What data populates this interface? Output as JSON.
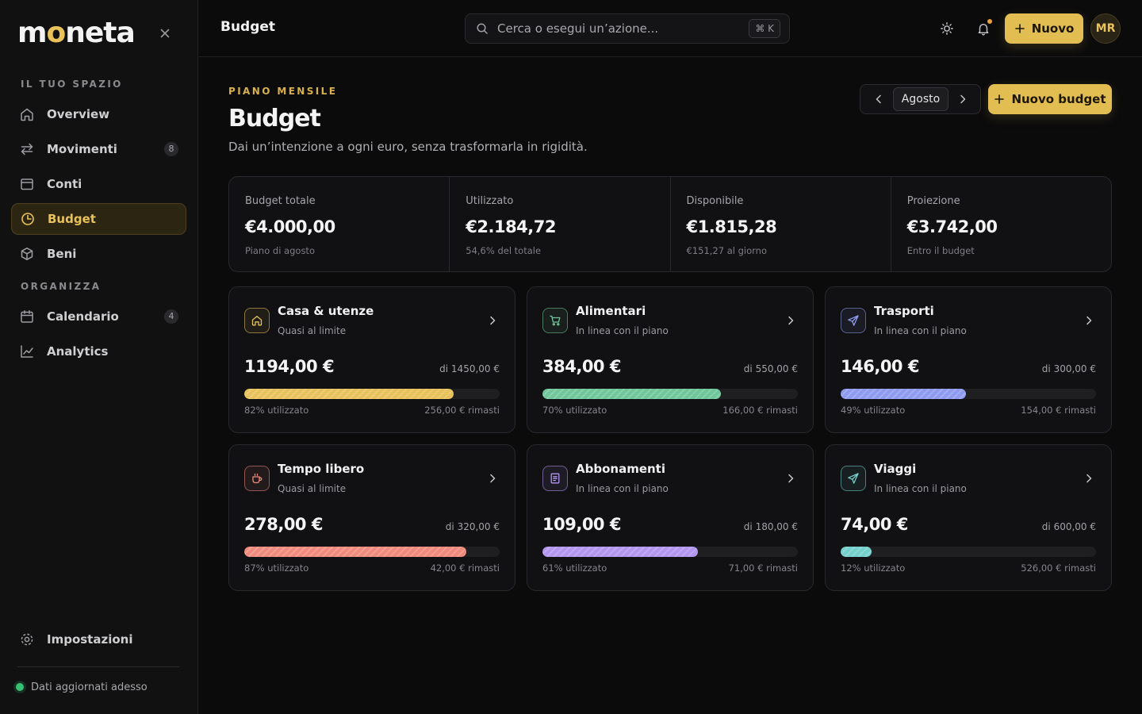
{
  "app": {
    "logo_pre": "m",
    "logo_o": "o",
    "logo_post": "neta"
  },
  "sidebar": {
    "section_1": "IL TUO SPAZIO",
    "section_2": "ORGANIZZA",
    "items": [
      {
        "label": "Overview",
        "icon": "home-icon"
      },
      {
        "label": "Movimenti",
        "icon": "transfer-icon",
        "count": "8"
      },
      {
        "label": "Conti",
        "icon": "wallet-icon"
      },
      {
        "label": "Budget",
        "icon": "pie-chart-icon",
        "active": true
      },
      {
        "label": "Beni",
        "icon": "box-icon"
      },
      {
        "label": "Calendario",
        "icon": "calendar-icon",
        "count": "4"
      },
      {
        "label": "Analytics",
        "icon": "analytics-icon"
      }
    ],
    "settings_label": "Impostazioni",
    "status_text": "Dati aggiornati adesso"
  },
  "topbar": {
    "title": "Budget",
    "search_placeholder": "Cerca o esegui un’azione...",
    "shortcut": "⌘ K",
    "new_label": "Nuovo",
    "avatar": "MR"
  },
  "header": {
    "eyebrow": "PIANO MENSILE",
    "title": "Budget",
    "subtitle": "Dai un’intenzione a ogni euro, senza trasformarla in rigidità.",
    "month": "Agosto",
    "new_budget_label": "Nuovo budget"
  },
  "summary": [
    {
      "label": "Budget totale",
      "value": "€4.000,00",
      "note": "Piano di agosto"
    },
    {
      "label": "Utilizzato",
      "value": "€2.184,72",
      "note": "54,6% del totale"
    },
    {
      "label": "Disponibile",
      "value": "€1.815,28",
      "note": "€151,27 al giorno"
    },
    {
      "label": "Proiezione",
      "value": "€3.742,00",
      "note": "Entro il budget"
    }
  ],
  "categories": [
    {
      "name": "Casa & utenze",
      "status": "Quasi al limite",
      "amount": "1194,00 €",
      "total": "di 1450,00 €",
      "used_pct": 82,
      "pct_label": "82% utilizzato",
      "remaining": "256,00 € rimasti",
      "icon": "home-icon",
      "color": "#e7c15a"
    },
    {
      "name": "Alimentari",
      "status": "In linea con il piano",
      "amount": "384,00 €",
      "total": "di 550,00 €",
      "used_pct": 70,
      "pct_label": "70% utilizzato",
      "remaining": "166,00 € rimasti",
      "icon": "cart-icon",
      "color": "#6fc69a"
    },
    {
      "name": "Trasporti",
      "status": "In linea con il piano",
      "amount": "146,00 €",
      "total": "di 300,00 €",
      "used_pct": 49,
      "pct_label": "49% utilizzato",
      "remaining": "154,00 € rimasti",
      "icon": "send-icon",
      "color": "#8e9bf0"
    },
    {
      "name": "Tempo libero",
      "status": "Quasi al limite",
      "amount": "278,00 €",
      "total": "di 320,00 €",
      "used_pct": 87,
      "pct_label": "87% utilizzato",
      "remaining": "42,00 € rimasti",
      "icon": "coffee-icon",
      "color": "#ef8a7c"
    },
    {
      "name": "Abbonamenti",
      "status": "In linea con il piano",
      "amount": "109,00 €",
      "total": "di 180,00 €",
      "used_pct": 61,
      "pct_label": "61% utilizzato",
      "remaining": "71,00 € rimasti",
      "icon": "receipt-icon",
      "color": "#b396f0"
    },
    {
      "name": "Viaggi",
      "status": "In linea con il piano",
      "amount": "74,00 €",
      "total": "di 600,00 €",
      "used_pct": 12,
      "pct_label": "12% utilizzato",
      "remaining": "526,00 € rimasti",
      "icon": "send-icon",
      "color": "#74d0cc"
    }
  ],
  "colors": {
    "accent": "#e2bd52",
    "background": "#0b0b0c",
    "online": "#38c172"
  }
}
